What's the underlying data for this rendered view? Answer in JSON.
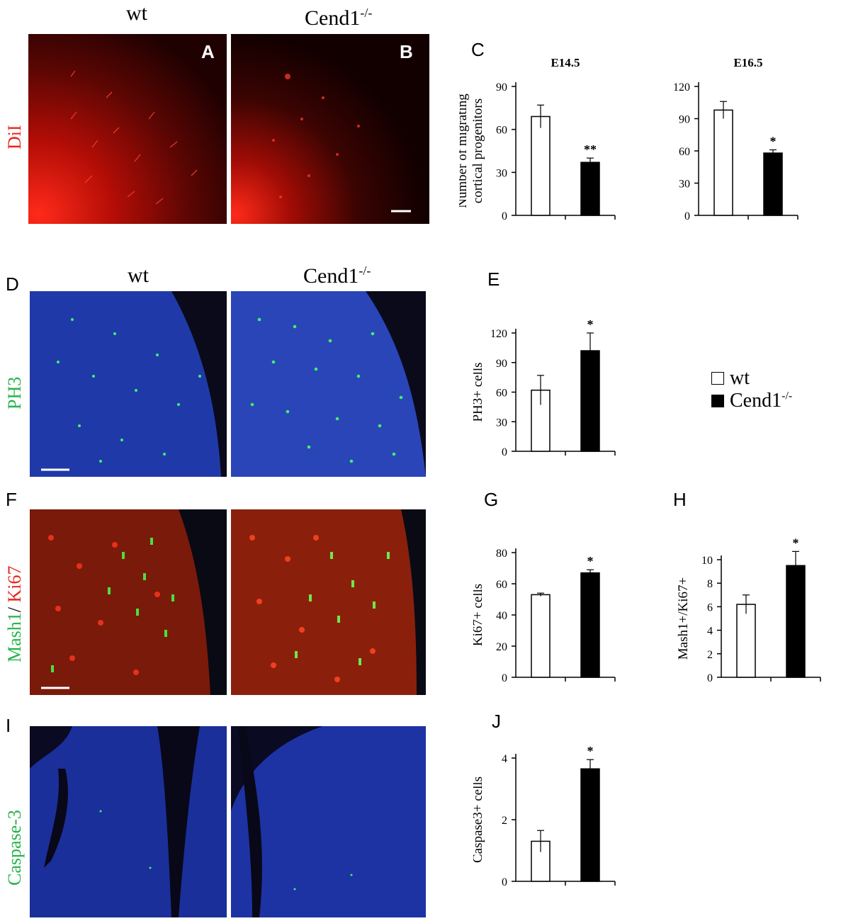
{
  "headers": {
    "wt_top": "wt",
    "ko_top_base": "Cend1",
    "ko_top_sup": "-/-",
    "wt_mid": "wt",
    "ko_mid_base": "Cend1",
    "ko_mid_sup": "-/-"
  },
  "panel_letters": {
    "A": "A",
    "B": "B",
    "C": "C",
    "D": "D",
    "E": "E",
    "F": "F",
    "G": "G",
    "H": "H",
    "I": "I",
    "J": "J"
  },
  "row_labels": {
    "dil": "DiI",
    "ph3": "PH3",
    "mash1": "Mash1",
    "slash": "/ ",
    "ki67": "Ki67",
    "caspase": "Caspase-3"
  },
  "colors": {
    "dil_red": "#e8261e",
    "ph3_green": "#27b34a",
    "ki67_red": "#e8261e",
    "caspase_green": "#27b34a",
    "wt_bar": "#ffffff",
    "ko_bar": "#000000"
  },
  "legend": {
    "wt": "wt",
    "ko_base": "Cend1",
    "ko_sup": "-/-"
  },
  "chart_data": [
    {
      "id": "C1",
      "type": "bar",
      "title": "E14.5",
      "ylabel_lines": [
        "Number of migrating",
        "cortical progenitors"
      ],
      "categories": [
        "wt",
        "Cend1-/-"
      ],
      "values": [
        69,
        37
      ],
      "errors": [
        8,
        3
      ],
      "annotations": [
        "",
        "**"
      ],
      "ylim": [
        0,
        90
      ],
      "yticks": [
        0,
        30,
        60,
        90
      ]
    },
    {
      "id": "C2",
      "type": "bar",
      "title": "E16.5",
      "ylabel_lines": [],
      "categories": [
        "wt",
        "Cend1-/-"
      ],
      "values": [
        98,
        58
      ],
      "errors": [
        8,
        3
      ],
      "annotations": [
        "",
        "*"
      ],
      "ylim": [
        0,
        120
      ],
      "yticks": [
        0,
        30,
        60,
        90,
        120
      ]
    },
    {
      "id": "E",
      "type": "bar",
      "title": "",
      "ylabel_lines": [
        "PH3+ cells"
      ],
      "categories": [
        "wt",
        "Cend1-/-"
      ],
      "values": [
        62,
        102
      ],
      "errors": [
        15,
        18
      ],
      "annotations": [
        "",
        "*"
      ],
      "ylim": [
        0,
        120
      ],
      "yticks": [
        0,
        30,
        60,
        90,
        120
      ]
    },
    {
      "id": "G",
      "type": "bar",
      "title": "",
      "ylabel_lines": [
        "Ki67+ cells"
      ],
      "categories": [
        "wt",
        "Cend1-/-"
      ],
      "values": [
        53,
        67
      ],
      "errors": [
        1,
        2
      ],
      "annotations": [
        "",
        "*"
      ],
      "ylim": [
        0,
        80
      ],
      "yticks": [
        0,
        20,
        40,
        60,
        80
      ]
    },
    {
      "id": "H",
      "type": "bar",
      "title": "",
      "ylabel_lines": [
        "Mash1+/Ki67+"
      ],
      "categories": [
        "wt",
        "Cend1-/-"
      ],
      "values": [
        6.2,
        9.5
      ],
      "errors": [
        0.8,
        1.2
      ],
      "annotations": [
        "",
        "*"
      ],
      "ylim": [
        0,
        10
      ],
      "yticks": [
        0,
        2,
        4,
        6,
        8,
        10
      ]
    },
    {
      "id": "J",
      "type": "bar",
      "title": "",
      "ylabel_lines": [
        "Caspase3+ cells"
      ],
      "categories": [
        "wt",
        "Cend1-/-"
      ],
      "values": [
        1.3,
        3.65
      ],
      "errors": [
        0.35,
        0.3
      ],
      "annotations": [
        "",
        "*"
      ],
      "ylim": [
        0,
        4
      ],
      "yticks": [
        0,
        2,
        4
      ]
    }
  ]
}
